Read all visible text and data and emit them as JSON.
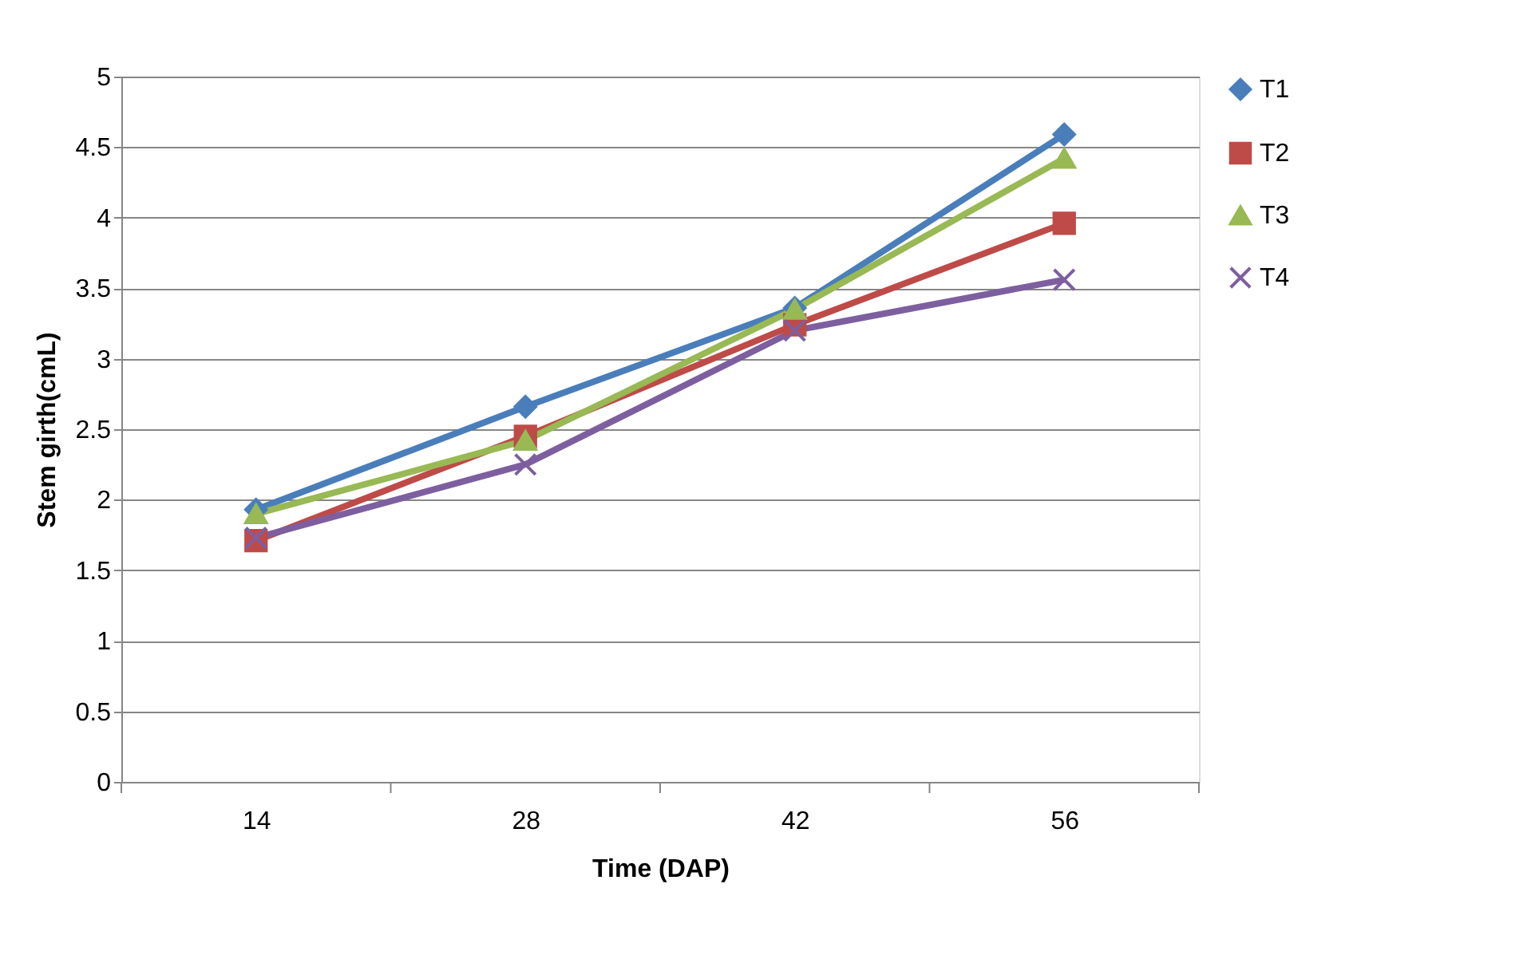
{
  "chart_data": {
    "type": "line",
    "xlabel": "Time (DAP)",
    "ylabel": "Stem girth(cmL)",
    "categories": [
      "14",
      "28",
      "42",
      "56"
    ],
    "series": [
      {
        "name": "T1",
        "color": "#4a7ebb",
        "marker": "diamond",
        "values": [
          1.93,
          2.66,
          3.36,
          4.59
        ]
      },
      {
        "name": "T2",
        "color": "#be4b48",
        "marker": "square",
        "values": [
          1.71,
          2.45,
          3.24,
          3.96
        ]
      },
      {
        "name": "T3",
        "color": "#98b954",
        "marker": "triangle",
        "values": [
          1.9,
          2.42,
          3.35,
          4.42
        ]
      },
      {
        "name": "T4",
        "color": "#7d5fa0",
        "marker": "cross",
        "values": [
          1.73,
          2.25,
          3.2,
          3.56
        ]
      }
    ],
    "ylim": [
      0,
      5
    ],
    "yticks": [
      0,
      0.5,
      1,
      1.5,
      2,
      2.5,
      3,
      3.5,
      4,
      4.5,
      5
    ],
    "grid": "y",
    "legend": "right",
    "line_style": "solid"
  }
}
